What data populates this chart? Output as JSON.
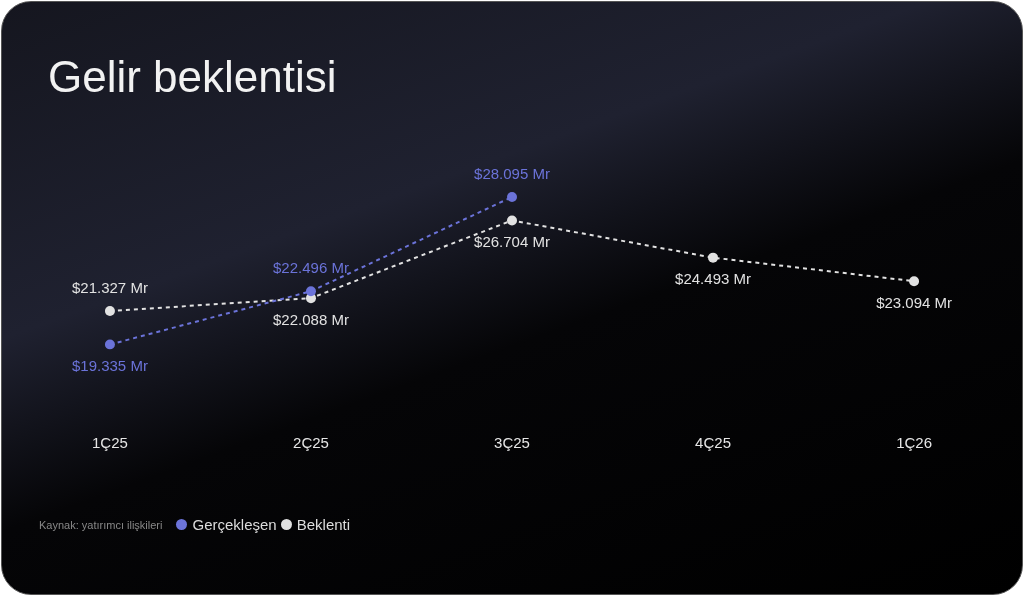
{
  "chart_data": {
    "type": "line",
    "title": "Gelir beklentisi",
    "categories": [
      "1Ç25",
      "2Ç25",
      "3Ç25",
      "4Ç25",
      "1Ç26"
    ],
    "series": [
      {
        "name": "Gerçekleşen",
        "color": "#6b73d9",
        "values": [
          19.335,
          22.496,
          28.095,
          null,
          null
        ],
        "value_labels": [
          "$19.335 Mr",
          "$22.496 Mr",
          "$28.095 Mr",
          null,
          null
        ]
      },
      {
        "name": "Beklenti",
        "color": "#e2e2e2",
        "values": [
          21.327,
          22.088,
          26.704,
          24.493,
          23.094
        ],
        "value_labels": [
          "$21.327 Mr",
          "$22.088 Mr",
          "$26.704 Mr",
          "$24.493 Mr",
          "$23.094 Mr"
        ]
      }
    ],
    "tick_labels": "x",
    "grid": false,
    "legend": "bottom left",
    "marker": "circle",
    "line_style": "dashed",
    "annotations": [
      "Kaynak: yatırımcı ilişkileri"
    ]
  }
}
